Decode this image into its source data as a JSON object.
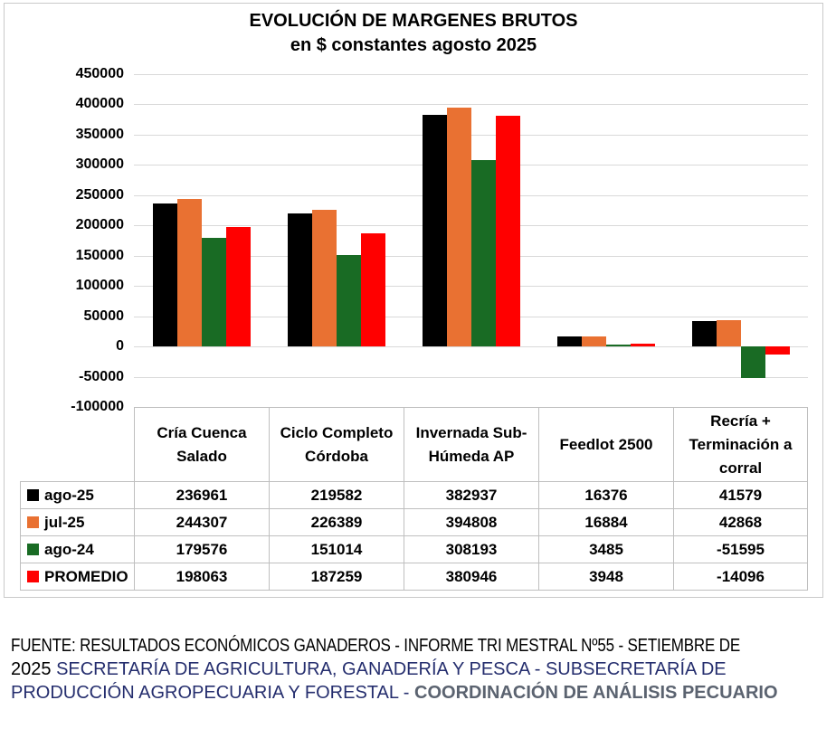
{
  "chart": {
    "title_line1": "EVOLUCIÓN DE MARGENES BRUTOS",
    "title_line2": "en $ constantes agosto 2025"
  },
  "chart_data": {
    "type": "bar",
    "title": "EVOLUCIÓN DE MARGENES BRUTOS en $ constantes agosto 2025",
    "categories": [
      "Cría Cuenca Salado",
      "Ciclo Completo Córdoba",
      "Invernada Sub-Húmeda AP",
      "Feedlot 2500",
      "Recría + Terminación a corral"
    ],
    "series": [
      {
        "name": "ago-25",
        "color": "#000000",
        "values": [
          236961,
          219582,
          382937,
          16376,
          41579
        ]
      },
      {
        "name": "jul-25",
        "color": "#e97132",
        "values": [
          244307,
          226389,
          394808,
          16884,
          42868
        ]
      },
      {
        "name": "ago-24",
        "color": "#196b24",
        "values": [
          179576,
          151014,
          308193,
          3485,
          -51595
        ]
      },
      {
        "name": "PROMEDIO",
        "color": "#ff0000",
        "values": [
          198063,
          187259,
          380946,
          3948,
          -14096
        ]
      }
    ],
    "xlabel": "",
    "ylabel": "",
    "ylim": [
      -100000,
      450000
    ],
    "ytick_step": 50000,
    "grid": true,
    "gridline_color": "#d9d9d9",
    "legend_position": "data-table-rows"
  },
  "footer": {
    "lines": [
      {
        "narrow": true,
        "segments": [
          {
            "text": "FUENTE: RESULTADOS ECONÓMICOS GANADEROS  - INFORME TRI MESTRAL Nº55 - SETIEMBRE DE",
            "color": "#000000",
            "bold": false
          }
        ]
      },
      {
        "narrow": false,
        "segments": [
          {
            "text": "2025 ",
            "color": "#000000",
            "bold": false
          },
          {
            "text": "SECRETARÍA DE AGRICULTURA, GANADERÍA Y PESCA - SUBSECRETARÍA DE",
            "color": "#252e6e",
            "bold": false
          }
        ]
      },
      {
        "narrow": false,
        "segments": [
          {
            "text": "PRODUCCIÓN AGROPECUARIA Y FORESTAL - ",
            "color": "#252e6e",
            "bold": false
          },
          {
            "text": "COORDINACIÓN DE ANÁLISIS PECUARIO",
            "color": "#5b6370",
            "bold": true
          }
        ]
      }
    ]
  }
}
